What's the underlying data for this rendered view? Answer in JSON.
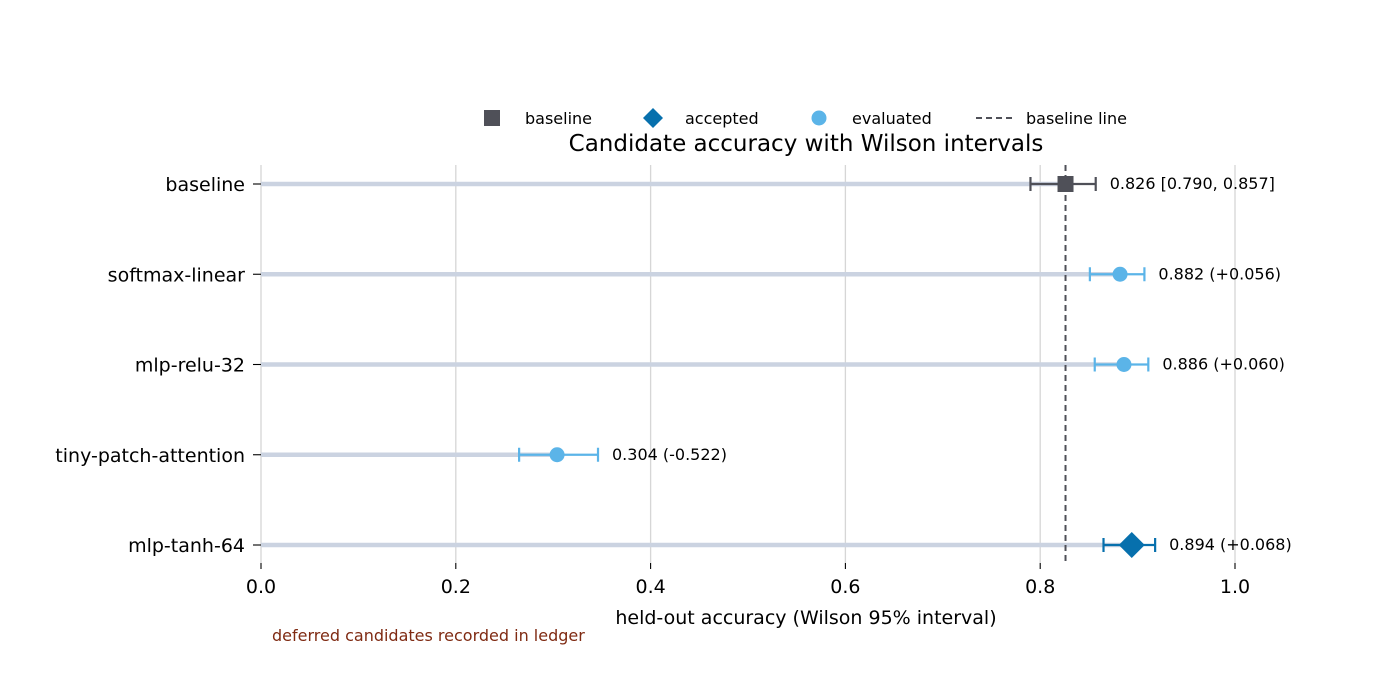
{
  "chart_data": {
    "type": "scatter",
    "title": "Candidate accuracy with Wilson intervals",
    "xlabel": "held-out accuracy (Wilson 95% interval)",
    "ylabel": "",
    "xlim": [
      0.0,
      1.0
    ],
    "xticks": [
      "0.0",
      "0.2",
      "0.4",
      "0.6",
      "0.8",
      "1.0"
    ],
    "grid": "vertical",
    "legend_position": "top-center",
    "legend": [
      {
        "label": "baseline",
        "marker": "square",
        "color": "#4f5058"
      },
      {
        "label": "accepted",
        "marker": "diamond",
        "color": "#0770ad"
      },
      {
        "label": "evaluated",
        "marker": "circle",
        "color": "#5bb4e8"
      },
      {
        "label": "baseline line",
        "marker": "dashed-line",
        "color": "#4f5058"
      }
    ],
    "baseline_line_value": 0.826,
    "candidates": [
      {
        "name": "baseline",
        "value": 0.826,
        "lo": 0.79,
        "hi": 0.857,
        "status": "baseline",
        "annotation": "0.826 [0.790, 0.857]"
      },
      {
        "name": "softmax-linear",
        "value": 0.882,
        "lo": 0.851,
        "hi": 0.907,
        "status": "evaluated",
        "annotation": "0.882 (+0.056)"
      },
      {
        "name": "mlp-relu-32",
        "value": 0.886,
        "lo": 0.856,
        "hi": 0.911,
        "status": "evaluated",
        "annotation": "0.886 (+0.060)"
      },
      {
        "name": "tiny-patch-attention",
        "value": 0.304,
        "lo": 0.265,
        "hi": 0.346,
        "status": "evaluated",
        "annotation": "0.304 (-0.522)"
      },
      {
        "name": "mlp-tanh-64",
        "value": 0.894,
        "lo": 0.865,
        "hi": 0.918,
        "status": "accepted",
        "annotation": "0.894 (+0.068)"
      }
    ],
    "footnote": "deferred candidates recorded in ledger"
  },
  "colors": {
    "baseline": "#4f5058",
    "accepted": "#0770ad",
    "evaluated": "#5bb4e8",
    "track": "#cbd3e1",
    "grid": "#d6d6d6",
    "footnote": "#7f2a12"
  }
}
